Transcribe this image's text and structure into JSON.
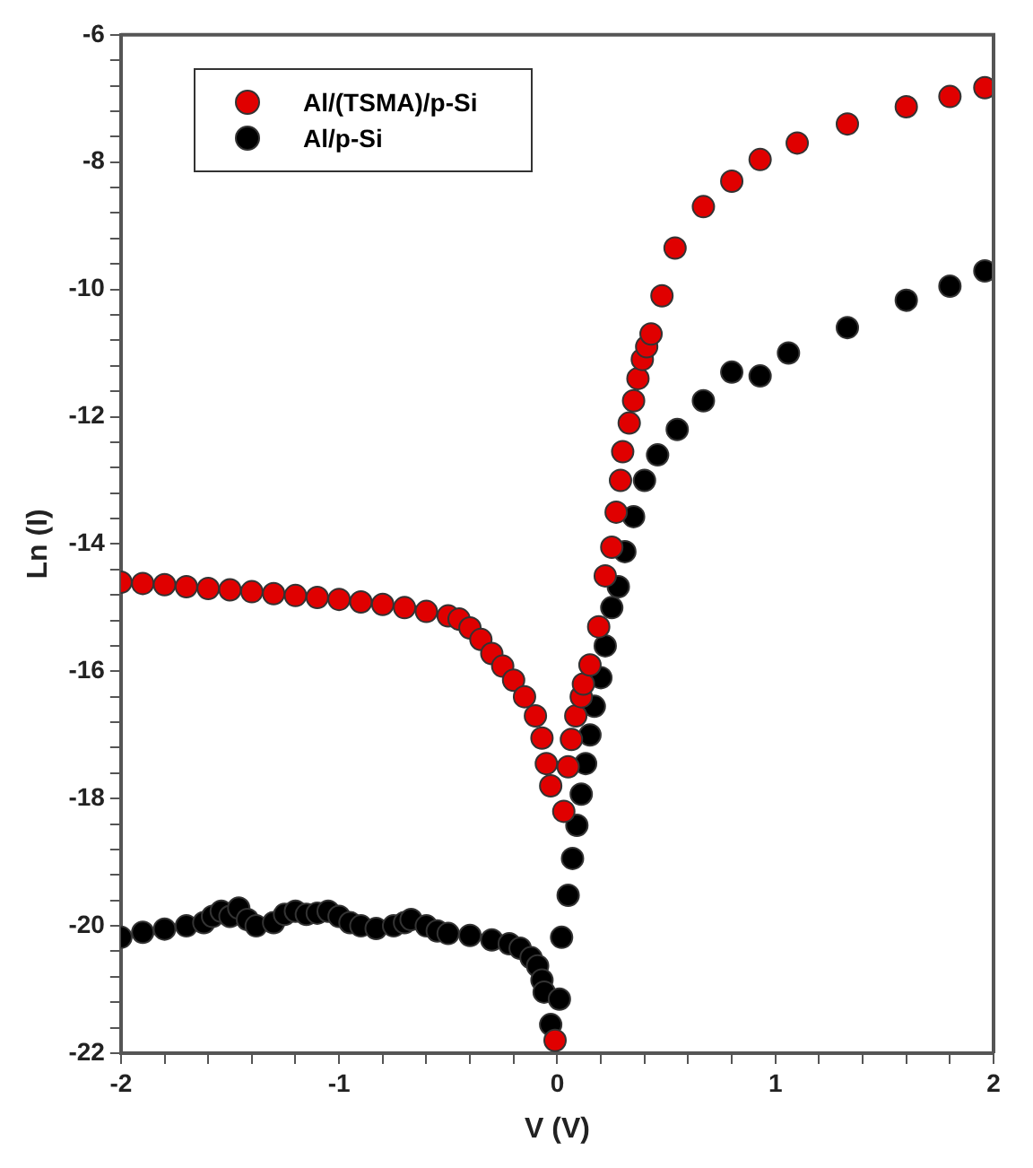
{
  "chart_data": {
    "type": "scatter",
    "xlabel": "V (V)",
    "ylabel": "Ln (I)",
    "xlim": [
      -2,
      2
    ],
    "ylim": [
      -22,
      -6
    ],
    "xticks": [
      -2,
      {
        "value": -1.8,
        "label": null
      },
      {
        "value": -1.6,
        "label": null
      },
      {
        "value": -1.4,
        "label": null
      },
      {
        "value": -1.2,
        "label": null
      },
      -1,
      {
        "value": -0.8,
        "label": null
      },
      {
        "value": -0.6,
        "label": null
      },
      {
        "value": -0.4,
        "label": null
      },
      {
        "value": -0.2,
        "label": null
      },
      0,
      {
        "value": 0.2,
        "label": null
      },
      {
        "value": 0.4,
        "label": null
      },
      {
        "value": 0.6,
        "label": null
      },
      {
        "value": 0.8,
        "label": null
      },
      1,
      {
        "value": 1.2,
        "label": null
      },
      {
        "value": 1.4,
        "label": null
      },
      {
        "value": 1.6,
        "label": null
      },
      {
        "value": 1.8,
        "label": null
      },
      2
    ],
    "yticks": [
      -22,
      {
        "value": -21.6,
        "label": null
      },
      {
        "value": -21.2,
        "label": null
      },
      {
        "value": -20.8,
        "label": null
      },
      {
        "value": -20.4,
        "label": null
      },
      -20,
      {
        "value": -19.6,
        "label": null
      },
      {
        "value": -19.2,
        "label": null
      },
      {
        "value": -18.8,
        "label": null
      },
      {
        "value": -18.4,
        "label": null
      },
      -18,
      {
        "value": -17.6,
        "label": null
      },
      {
        "value": -17.2,
        "label": null
      },
      {
        "value": -16.8,
        "label": null
      },
      {
        "value": -16.4,
        "label": null
      },
      -16,
      {
        "value": -15.6,
        "label": null
      },
      {
        "value": -15.2,
        "label": null
      },
      {
        "value": -14.8,
        "label": null
      },
      {
        "value": -14.4,
        "label": null
      },
      -14,
      {
        "value": -13.6,
        "label": null
      },
      {
        "value": -13.2,
        "label": null
      },
      {
        "value": -12.8,
        "label": null
      },
      {
        "value": -12.4,
        "label": null
      },
      -12,
      {
        "value": -11.6,
        "label": null
      },
      {
        "value": -11.2,
        "label": null
      },
      {
        "value": -10.8,
        "label": null
      },
      {
        "value": -10.4,
        "label": null
      },
      -10,
      {
        "value": -9.6,
        "label": null
      },
      {
        "value": -9.2,
        "label": null
      },
      {
        "value": -8.8,
        "label": null
      },
      {
        "value": -8.4,
        "label": null
      },
      -8,
      {
        "value": -7.6,
        "label": null
      },
      {
        "value": -7.2,
        "label": null
      },
      {
        "value": -6.8,
        "label": null
      },
      {
        "value": -6.4,
        "label": null
      },
      -6
    ],
    "grid": false,
    "legend": "top left",
    "marker": "circle",
    "series": [
      {
        "name": "Al/(TSMA)/p-Si",
        "color": "#e00000",
        "x": [
          -2,
          -1.9,
          -1.8,
          -1.7,
          -1.6,
          -1.5,
          -1.4,
          -1.3,
          -1.2,
          -1.1,
          -1,
          -0.9,
          -0.8,
          -0.7,
          -0.6,
          -0.5,
          -0.45,
          -0.4,
          -0.35,
          -0.3,
          -0.25,
          -0.2,
          -0.15,
          -0.1,
          -0.07,
          -0.05,
          -0.03,
          -0.01,
          0.03,
          0.05,
          0.065,
          0.085,
          0.11,
          0.12,
          0.15,
          0.19,
          0.22,
          0.25,
          0.27,
          0.29,
          0.3,
          0.33,
          0.35,
          0.37,
          0.39,
          0.41,
          0.43,
          0.48,
          0.54,
          0.67,
          0.8,
          0.93,
          1.1,
          1.33,
          1.6,
          1.8,
          1.96
        ],
        "values": [
          -14.6,
          -14.62,
          -14.64,
          -14.67,
          -14.7,
          -14.72,
          -14.75,
          -14.78,
          -14.81,
          -14.84,
          -14.87,
          -14.91,
          -14.95,
          -15,
          -15.06,
          -15.13,
          -15.18,
          -15.32,
          -15.5,
          -15.72,
          -15.92,
          -16.14,
          -16.4,
          -16.7,
          -17.05,
          -17.45,
          -17.8,
          -21.8,
          -18.2,
          -17.5,
          -17.07,
          -16.7,
          -16.4,
          -16.2,
          -15.9,
          -15.3,
          -14.5,
          -14.05,
          -13.5,
          -13,
          -12.55,
          -12.1,
          -11.75,
          -11.4,
          -11.1,
          -10.9,
          -10.7,
          -10.1,
          -9.35,
          -8.7,
          -8.3,
          -7.96,
          -7.7,
          -7.4,
          -7.13,
          -6.97,
          -6.83
        ]
      },
      {
        "name": "Al/p-Si",
        "color": "#000000",
        "x": [
          -2,
          -1.9,
          -1.8,
          -1.7,
          -1.62,
          -1.58,
          -1.54,
          -1.5,
          -1.46,
          -1.42,
          -1.38,
          -1.3,
          -1.25,
          -1.2,
          -1.15,
          -1.1,
          -1.05,
          -1,
          -0.95,
          -0.9,
          -0.83,
          -0.75,
          -0.7,
          -0.67,
          -0.6,
          -0.55,
          -0.5,
          -0.4,
          -0.3,
          -0.22,
          -0.17,
          -0.12,
          -0.09,
          -0.07,
          -0.06,
          -0.03,
          0.01,
          0.02,
          0.05,
          0.07,
          0.09,
          0.11,
          0.13,
          0.15,
          0.17,
          0.2,
          0.22,
          0.25,
          0.28,
          0.31,
          0.35,
          0.4,
          0.46,
          0.55,
          0.67,
          0.8,
          0.93,
          1.06,
          1.33,
          1.6,
          1.8,
          1.96
        ],
        "values": [
          -20.18,
          -20.1,
          -20.05,
          -20,
          -19.95,
          -19.85,
          -19.77,
          -19.85,
          -19.72,
          -19.9,
          -20,
          -19.95,
          -19.82,
          -19.77,
          -19.82,
          -19.8,
          -19.77,
          -19.85,
          -19.95,
          -20,
          -20.04,
          -20,
          -19.95,
          -19.9,
          -20,
          -20.08,
          -20.12,
          -20.15,
          -20.22,
          -20.28,
          -20.35,
          -20.5,
          -20.63,
          -20.85,
          -21.04,
          -21.55,
          -21.15,
          -20.18,
          -19.52,
          -18.94,
          -18.42,
          -17.93,
          -17.45,
          -17,
          -16.55,
          -16.1,
          -15.6,
          -15,
          -14.67,
          -14.12,
          -13.57,
          -13,
          -12.6,
          -12.2,
          -11.75,
          -11.3,
          -11.36,
          -11,
          -10.6,
          -10.17,
          -9.95,
          -9.71
        ]
      }
    ]
  }
}
